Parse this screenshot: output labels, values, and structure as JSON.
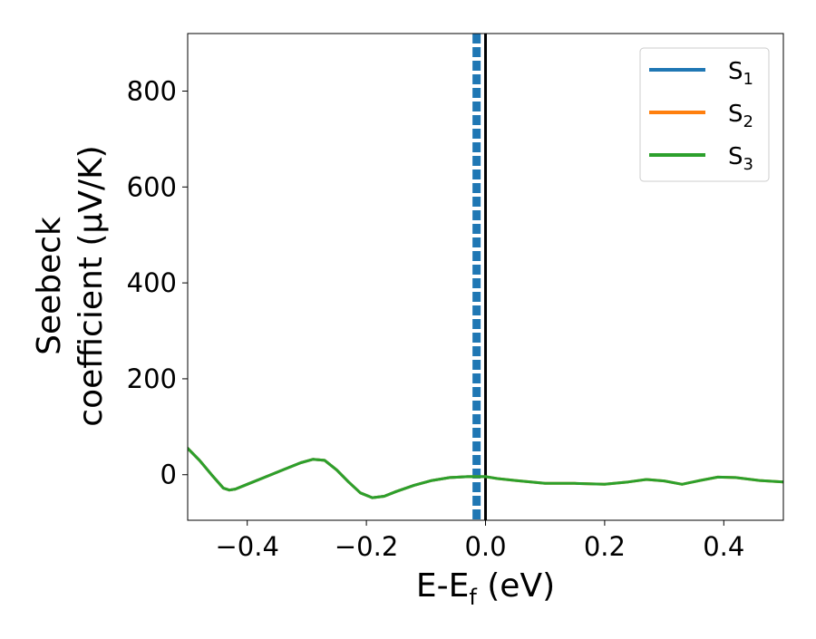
{
  "chart_data": {
    "type": "line",
    "title": "",
    "xlabel": {
      "main": "E-E",
      "sub": "f",
      "suffix": " (eV)"
    },
    "ylabel": {
      "line1": "Seebeck",
      "line2": "coefficient  (μV/K)"
    },
    "xlim": [
      -0.5,
      0.5
    ],
    "ylim": [
      -95,
      920
    ],
    "xticks": [
      -0.4,
      -0.2,
      0.0,
      0.2,
      0.4
    ],
    "xtick_labels": [
      "−0.4",
      "−0.2",
      "0.0",
      "0.2",
      "0.4"
    ],
    "yticks": [
      0,
      200,
      400,
      600,
      800
    ],
    "ytick_labels": [
      "0",
      "200",
      "400",
      "600",
      "800"
    ],
    "grid": false,
    "legend_position": "top-right",
    "vertical_lines": [
      {
        "x": -0.015,
        "color": "#1f77b4",
        "style": "dashed"
      },
      {
        "x": 0.0,
        "color": "#000000",
        "style": "solid"
      }
    ],
    "series": [
      {
        "name": {
          "main": "S",
          "sub": "1"
        },
        "color": "#1f77b4",
        "x": [
          -0.5,
          -0.48,
          -0.46,
          -0.44,
          -0.43,
          -0.42,
          -0.4,
          -0.37,
          -0.34,
          -0.31,
          -0.29,
          -0.27,
          -0.25,
          -0.23,
          -0.21,
          -0.19,
          -0.17,
          -0.15,
          -0.12,
          -0.09,
          -0.06,
          -0.03,
          -0.01,
          0.0
        ],
        "y": [
          55,
          30,
          0,
          -28,
          -32,
          -30,
          -20,
          -5,
          10,
          25,
          32,
          30,
          10,
          -15,
          -38,
          -48,
          -45,
          -35,
          -22,
          -12,
          -6,
          -4,
          -4,
          -4
        ]
      },
      {
        "name": {
          "main": "S",
          "sub": "2"
        },
        "color": "#ff7f0e",
        "x": [
          -0.5,
          -0.48,
          -0.46,
          -0.44,
          -0.43,
          -0.42,
          -0.4,
          -0.37,
          -0.34,
          -0.31,
          -0.29,
          -0.27,
          -0.25,
          -0.23,
          -0.21,
          -0.19,
          -0.17,
          -0.15,
          -0.12,
          -0.09,
          -0.06,
          -0.03,
          -0.01,
          0.0,
          0.02,
          0.05,
          0.1,
          0.15,
          0.2,
          0.24,
          0.27,
          0.3,
          0.33,
          0.36,
          0.39,
          0.42,
          0.46,
          0.5
        ],
        "y": [
          55,
          30,
          0,
          -28,
          -32,
          -30,
          -20,
          -5,
          10,
          25,
          32,
          30,
          10,
          -15,
          -38,
          -48,
          -45,
          -35,
          -22,
          -12,
          -6,
          -4,
          -4,
          -4,
          -8,
          -12,
          -18,
          -18,
          -20,
          -15,
          -10,
          -13,
          -20,
          -12,
          -5,
          -6,
          -12,
          -15
        ]
      },
      {
        "name": {
          "main": "S",
          "sub": "3"
        },
        "color": "#2ca02c",
        "x": [
          -0.5,
          -0.48,
          -0.46,
          -0.44,
          -0.43,
          -0.42,
          -0.4,
          -0.37,
          -0.34,
          -0.31,
          -0.29,
          -0.27,
          -0.25,
          -0.23,
          -0.21,
          -0.19,
          -0.17,
          -0.15,
          -0.12,
          -0.09,
          -0.06,
          -0.03,
          -0.01,
          0.0,
          0.02,
          0.05,
          0.1,
          0.15,
          0.2,
          0.24,
          0.27,
          0.3,
          0.33,
          0.36,
          0.39,
          0.42,
          0.46,
          0.5
        ],
        "y": [
          55,
          30,
          0,
          -28,
          -32,
          -30,
          -20,
          -5,
          10,
          25,
          32,
          30,
          10,
          -15,
          -38,
          -48,
          -45,
          -35,
          -22,
          -12,
          -6,
          -4,
          -4,
          -4,
          -8,
          -12,
          -18,
          -18,
          -20,
          -15,
          -10,
          -13,
          -20,
          -12,
          -5,
          -6,
          -12,
          -15
        ]
      }
    ]
  }
}
